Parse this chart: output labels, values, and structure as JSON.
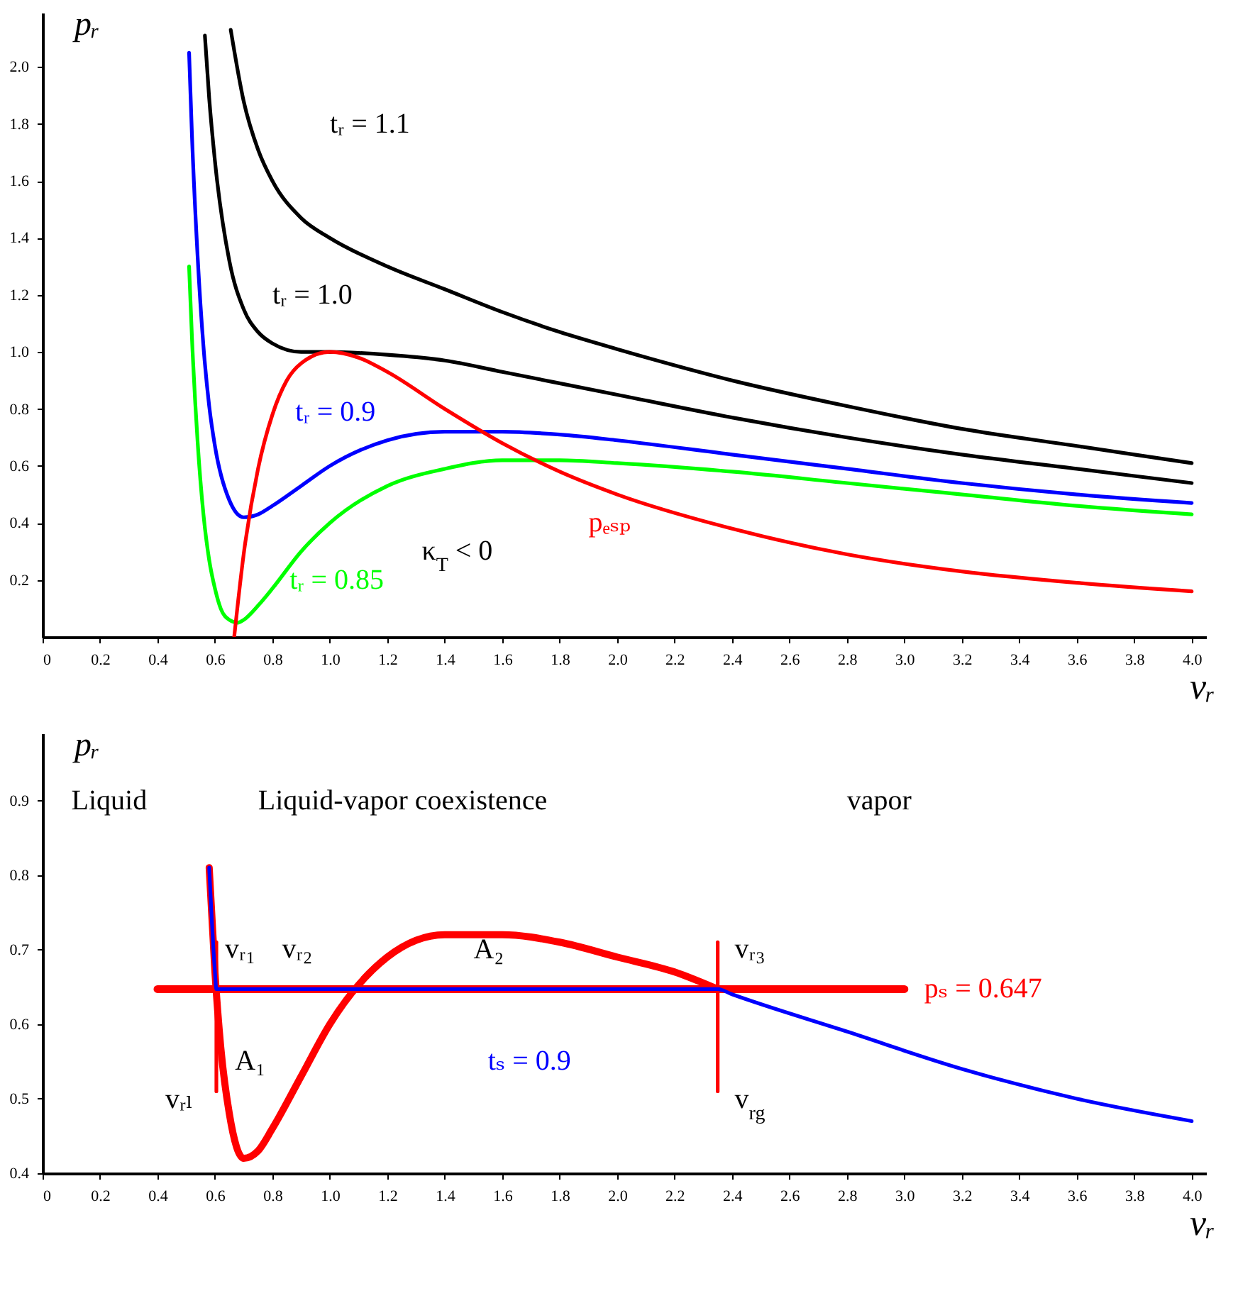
{
  "chart_data": [
    {
      "type": "line",
      "xlabel": "vᵣ",
      "ylabel": "pᵣ",
      "xlim": [
        0,
        4.05
      ],
      "ylim": [
        0,
        2.19
      ],
      "xticks": [
        0,
        0.2,
        0.4,
        0.6,
        0.8,
        {
          "value": 1,
          "label": "1.0"
        },
        1.2,
        1.4,
        1.6,
        1.8,
        {
          "value": 2,
          "label": "2.0"
        },
        2.2,
        2.4,
        2.6,
        2.8,
        {
          "value": 3,
          "label": "3.0"
        },
        3.2,
        3.4,
        3.6,
        3.8,
        {
          "value": 4,
          "label": "4.0"
        }
      ],
      "yticks": [
        0.2,
        0.4,
        0.6,
        0.8,
        {
          "value": 1,
          "label": "1.0"
        },
        1.2,
        1.4,
        1.6,
        1.8,
        {
          "value": 2,
          "label": "2.0"
        }
      ],
      "series": [
        {
          "name": "tᵣ = 1.1",
          "color": "#000000",
          "x": [
            0.655,
            0.7,
            0.75,
            0.8,
            0.9,
            1.0,
            1.2,
            1.4,
            1.6,
            1.8,
            2.0,
            2.4,
            2.8,
            3.2,
            3.6,
            4.0
          ],
          "values": [
            2.13,
            1.88,
            1.71,
            1.6,
            1.47,
            1.4,
            1.3,
            1.22,
            1.14,
            1.07,
            1.01,
            0.9,
            0.81,
            0.73,
            0.67,
            0.61
          ]
        },
        {
          "name": "tᵣ = 1.0",
          "color": "#000000",
          "x": [
            0.565,
            0.58,
            0.6,
            0.65,
            0.7,
            0.75,
            0.8,
            0.9,
            1.0,
            1.2,
            1.4,
            1.6,
            2.0,
            2.4,
            2.8,
            3.2,
            3.6,
            4.0
          ],
          "values": [
            2.11,
            1.89,
            1.67,
            1.32,
            1.15,
            1.07,
            1.03,
            1.0,
            1.0,
            0.99,
            0.97,
            0.93,
            0.85,
            0.77,
            0.7,
            0.64,
            0.59,
            0.54
          ]
        },
        {
          "name": "tᵣ = 0.9",
          "color": "#0000ff",
          "x": [
            0.51,
            0.52,
            0.54,
            0.56,
            0.58,
            0.6,
            0.65,
            0.7,
            0.75,
            0.8,
            0.9,
            1.0,
            1.2,
            1.4,
            1.6,
            1.8,
            2.0,
            2.4,
            2.8,
            3.2,
            3.6,
            4.0
          ],
          "values": [
            2.05,
            1.76,
            1.33,
            1.02,
            0.81,
            0.67,
            0.48,
            0.42,
            0.43,
            0.46,
            0.53,
            0.6,
            0.69,
            0.72,
            0.72,
            0.71,
            0.69,
            0.64,
            0.59,
            0.54,
            0.5,
            0.47
          ]
        },
        {
          "name": "tᵣ = 0.85",
          "color": "#00ff00",
          "x": [
            0.51,
            0.52,
            0.54,
            0.56,
            0.58,
            0.6,
            0.62,
            0.65,
            0.68,
            0.7,
            0.75,
            0.8,
            0.9,
            1.0,
            1.2,
            1.4,
            1.6,
            1.8,
            2.0,
            2.4,
            2.8,
            3.2,
            3.6,
            4.0
          ],
          "values": [
            1.3,
            1.05,
            0.68,
            0.43,
            0.27,
            0.17,
            0.1,
            0.06,
            0.05,
            0.06,
            0.11,
            0.17,
            0.3,
            0.4,
            0.53,
            0.59,
            0.62,
            0.62,
            0.61,
            0.58,
            0.54,
            0.5,
            0.46,
            0.43
          ]
        },
        {
          "name": "pₑₛₚ",
          "color": "#ff0000",
          "x": [
            0.667,
            0.7,
            0.75,
            0.8,
            0.85,
            0.9,
            1.0,
            1.1,
            1.2,
            1.4,
            1.6,
            1.8,
            2.0,
            2.4,
            2.8,
            3.2,
            3.6,
            4.0
          ],
          "values": [
            0,
            0.29,
            0.59,
            0.78,
            0.9,
            0.96,
            1.0,
            0.98,
            0.93,
            0.8,
            0.68,
            0.58,
            0.5,
            0.38,
            0.29,
            0.23,
            0.19,
            0.16
          ]
        }
      ],
      "annotations": [
        "κ$_{T}$ < 0"
      ]
    },
    {
      "type": "line",
      "xlabel": "vᵣ",
      "ylabel": "pᵣ",
      "xlim": [
        0,
        4.05
      ],
      "ylim": [
        0.4,
        0.99
      ],
      "xticks": [
        0,
        0.2,
        0.4,
        0.6,
        0.8,
        {
          "value": 1,
          "label": "1.0"
        },
        1.2,
        1.4,
        1.6,
        1.8,
        {
          "value": 2,
          "label": "2.0"
        },
        2.2,
        2.4,
        2.6,
        2.8,
        {
          "value": 3,
          "label": "3.0"
        },
        3.2,
        3.4,
        3.6,
        3.8,
        {
          "value": 4,
          "label": "4.0"
        }
      ],
      "yticks": [
        0.4,
        0.5,
        0.6,
        0.7,
        0.8,
        0.9
      ],
      "series": [
        {
          "color": "#ff0000",
          "x": [
            0.58,
            0.6,
            0.62,
            0.65,
            0.7,
            0.75,
            0.8,
            0.9,
            1.0,
            1.2,
            1.4,
            1.6,
            1.8,
            2.0,
            2.2,
            2.35
          ],
          "values": [
            0.81,
            0.67,
            0.57,
            0.48,
            0.42,
            0.43,
            0.46,
            0.53,
            0.6,
            0.69,
            0.72,
            0.72,
            0.71,
            0.69,
            0.67,
            0.647
          ]
        },
        {
          "name": "pₛ = 0.647",
          "color": "#ff0000",
          "x": [
            0.4,
            3.0
          ],
          "values": [
            0.647,
            0.647
          ]
        },
        {
          "color": "#ff0000",
          "x": [
            0.605,
            0.605
          ],
          "values": [
            0.51,
            0.71
          ]
        },
        {
          "color": "#ff0000",
          "x": [
            2.35,
            2.35
          ],
          "values": [
            0.51,
            0.71
          ]
        },
        {
          "name": "tₛ = 0.9",
          "color": "#0000ff",
          "x": [
            0.58,
            0.6,
            0.605,
            2.35,
            2.4,
            2.8,
            3.2,
            3.6,
            4.0
          ],
          "values": [
            0.81,
            0.67,
            0.647,
            0.647,
            0.64,
            0.59,
            0.54,
            0.5,
            0.47
          ]
        }
      ],
      "annotations": [
        "Liquid",
        "Liquid-vapor coexistence",
        "vapor",
        {
          "text": "vᵣ₁",
          "x": 0.605,
          "y": 0.647
        },
        {
          "text": "vᵣ₂",
          "x": 1.09,
          "y": 0.647
        },
        {
          "text": "vᵣ₃",
          "x": 2.35,
          "y": 0.647
        },
        {
          "text": "vᵣₗ",
          "x": 0.605,
          "y": 0.51
        },
        {
          "text": "v$_{rg}$",
          "x": 2.35,
          "y": 0.51
        },
        "A₁",
        "A₂"
      ]
    }
  ]
}
